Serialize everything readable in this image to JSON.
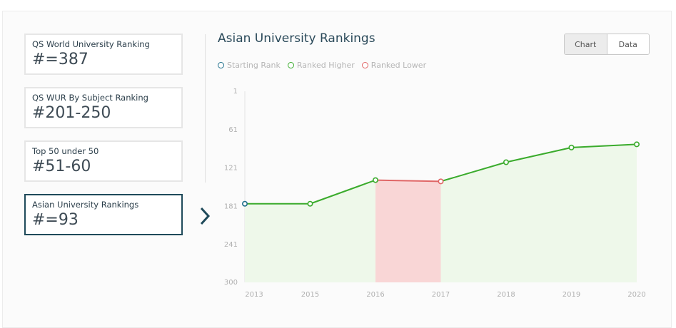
{
  "cards": [
    {
      "label": "QS World University Ranking",
      "value": "#=387"
    },
    {
      "label": "QS WUR By Subject Ranking",
      "value": "#201-250"
    },
    {
      "label": "Top 50 under 50",
      "value": "#51-60"
    },
    {
      "label": "Asian University Rankings",
      "value": "#=93"
    }
  ],
  "toggle": {
    "chart_label": "Chart",
    "data_label": "Data"
  },
  "legend": [
    {
      "label": "Starting Rank",
      "color": "#1f6f8b"
    },
    {
      "label": "Ranked Higher",
      "color": "#3aab2c"
    },
    {
      "label": "Ranked Lower",
      "color": "#e06666"
    }
  ],
  "colors": {
    "higher": "#3aab2c",
    "lower": "#e06666",
    "start": "#1f6f8b",
    "fill_higher": "#eef8ea",
    "fill_lower": "#f9d6d6"
  },
  "chart_data": {
    "type": "line",
    "title": "Asian University Rankings",
    "x": [
      "2013",
      "2015",
      "2016",
      "2017",
      "2018",
      "2019",
      "2020"
    ],
    "values": [
      177,
      177,
      140,
      142,
      112,
      89,
      84
    ],
    "yticks": [
      1,
      61,
      121,
      181,
      241,
      300
    ],
    "ylim": [
      1,
      300
    ],
    "y_inverted": true,
    "segments": [
      "higher",
      "higher",
      "lower",
      "higher",
      "higher",
      "higher"
    ]
  }
}
